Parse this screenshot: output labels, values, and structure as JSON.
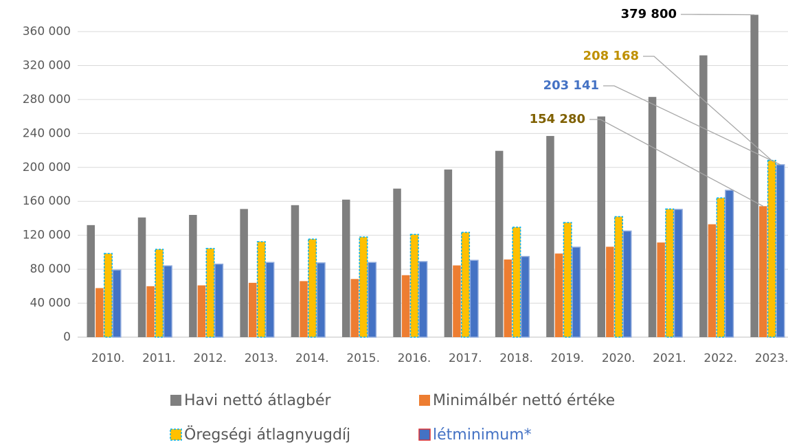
{
  "chart_data": {
    "type": "bar",
    "categories": [
      "2010.",
      "2011.",
      "2012.",
      "2013.",
      "2014.",
      "2015.",
      "2016.",
      "2017.",
      "2018.",
      "2019.",
      "2020.",
      "2021.",
      "2022.",
      "2023."
    ],
    "series": [
      {
        "name": "Havi nettó átlagbér",
        "color": "#7f7f7f",
        "label_color": "#000000",
        "values": [
          132000,
          141000,
          144000,
          151000,
          155500,
          162000,
          175000,
          197500,
          219500,
          237000,
          260000,
          283000,
          332000,
          379800
        ],
        "value_labels": [
          null,
          null,
          null,
          null,
          null,
          null,
          null,
          null,
          null,
          null,
          null,
          null,
          null,
          "379 800"
        ]
      },
      {
        "name": "Minimálbér nettó értéke",
        "color": "#ed7d31",
        "label_color": "#7f6000",
        "values": [
          57800,
          60000,
          61000,
          64000,
          66000,
          68500,
          73000,
          84500,
          91500,
          98500,
          106500,
          111500,
          133000,
          154280
        ],
        "value_labels": [
          null,
          null,
          null,
          null,
          null,
          null,
          null,
          null,
          null,
          null,
          null,
          null,
          null,
          "154 280"
        ]
      },
      {
        "name": "Öregségi átlagnyugdíj",
        "color": "#ffc000",
        "border": "#00b0f0",
        "label_color": "#bf9000",
        "values": [
          98500,
          103500,
          104500,
          112500,
          115500,
          118000,
          121000,
          123500,
          129500,
          135000,
          142000,
          151000,
          164000,
          208168
        ],
        "value_labels": [
          null,
          null,
          null,
          null,
          null,
          null,
          null,
          null,
          null,
          null,
          null,
          null,
          null,
          "208 168"
        ]
      },
      {
        "name": "létminimum*",
        "color": "#4472c4",
        "border": "#8faadc",
        "label_color": "#4472c4",
        "legend_color": "#4472c4",
        "values": [
          79000,
          84000,
          86000,
          88000,
          87500,
          88000,
          89000,
          90500,
          95000,
          106000,
          125000,
          150500,
          173000,
          203141
        ],
        "value_labels": [
          null,
          null,
          null,
          null,
          null,
          null,
          null,
          null,
          null,
          null,
          null,
          null,
          null,
          "203 141"
        ]
      }
    ],
    "ylim": [
      0,
      360000
    ],
    "yticks": [
      0,
      {
        "value": 40000,
        "label": "40 000"
      },
      {
        "value": 80000,
        "label": "80 000"
      },
      {
        "value": 120000,
        "label": "120 000"
      },
      {
        "value": 160000,
        "label": "160 000"
      },
      {
        "value": 200000,
        "label": "200 000"
      },
      {
        "value": 240000,
        "label": "240 000"
      },
      {
        "value": 280000,
        "label": "280 000"
      },
      {
        "value": 320000,
        "label": "320 000"
      },
      {
        "value": 360000,
        "label": "360 000"
      }
    ],
    "grid": true,
    "legend": "bottom"
  }
}
